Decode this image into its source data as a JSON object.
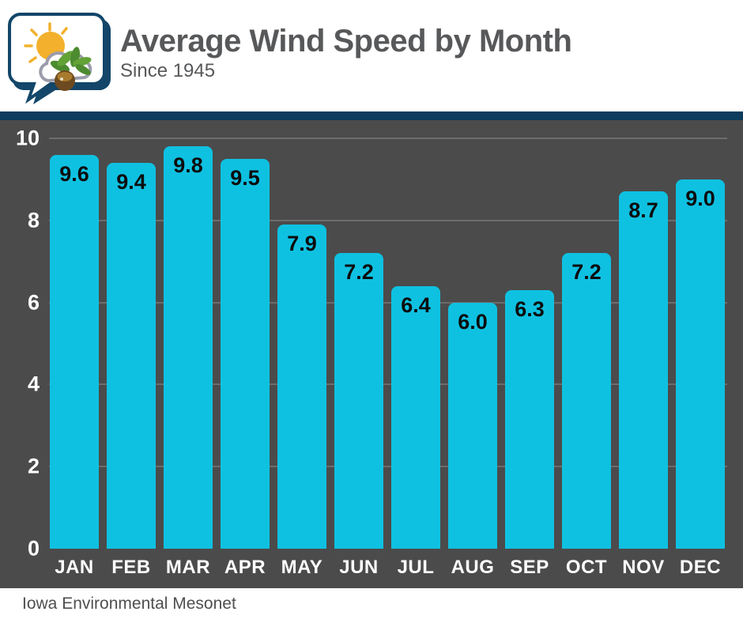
{
  "header": {
    "title": "Average Wind Speed by Month",
    "subtitle": "Since 1945"
  },
  "footer": {
    "attribution": "Iowa Environmental Mesonet"
  },
  "colors": {
    "accent_navy": "#0d3c5e",
    "bar_cyan": "#0fc1e1",
    "plot_background": "#4b4b4b",
    "gridline": "#6c6c6c",
    "title_gray": "#57585a",
    "axis_text": "#ffffff",
    "value_text": "#0b0b0b"
  },
  "chart_data": {
    "type": "bar",
    "title": "Average Wind Speed by Month",
    "subtitle": "Since 1945",
    "categories": [
      "JAN",
      "FEB",
      "MAR",
      "APR",
      "MAY",
      "JUN",
      "JUL",
      "AUG",
      "SEP",
      "OCT",
      "NOV",
      "DEC"
    ],
    "values": [
      9.6,
      9.4,
      9.8,
      9.5,
      7.9,
      7.2,
      6.4,
      6.0,
      6.3,
      7.2,
      8.7,
      9.0
    ],
    "value_labels": [
      "9.6",
      "9.4",
      "9.8",
      "9.5",
      "7.9",
      "7.2",
      "6.4",
      "6.0",
      "6.3",
      "7.2",
      "8.7",
      "9.0"
    ],
    "xlabel": "",
    "ylabel": "",
    "ylim": [
      0,
      10
    ],
    "yticks": [
      0,
      2,
      4,
      6,
      8,
      10
    ],
    "grid": true,
    "legend": false,
    "source": "Iowa Environmental Mesonet"
  }
}
